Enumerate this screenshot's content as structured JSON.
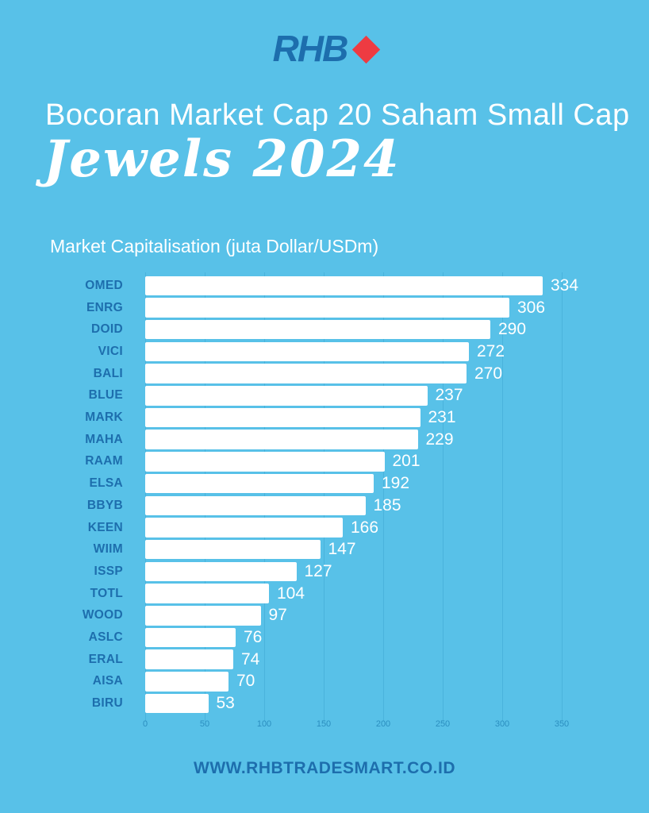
{
  "brand": {
    "logo_text": "RHB",
    "diamond_color": "#EE3B42"
  },
  "header": {
    "title": "Bocoran Market Cap 20 Saham Small Cap",
    "script_title": "Jewels 2024"
  },
  "chart_data": {
    "type": "bar",
    "orientation": "horizontal",
    "title": "Market Capitalisation (juta Dollar/USDm)",
    "categories": [
      "OMED",
      "ENRG",
      "DOID",
      "VICI",
      "BALI",
      "BLUE",
      "MARK",
      "MAHA",
      "RAAM",
      "ELSA",
      "BBYB",
      "KEEN",
      "WIIM",
      "ISSP",
      "TOTL",
      "WOOD",
      "ASLC",
      "ERAL",
      "AISA",
      "BIRU"
    ],
    "values": [
      334,
      306,
      290,
      272,
      270,
      237,
      231,
      229,
      201,
      192,
      185,
      166,
      147,
      127,
      104,
      97,
      76,
      74,
      70,
      53
    ],
    "xlabel": "",
    "ylabel": "",
    "xlim": [
      0,
      350
    ],
    "xticks": [
      0,
      50,
      100,
      150,
      200,
      250,
      300,
      350
    ],
    "grid": true,
    "bar_color": "#FFFFFF",
    "value_labels": true,
    "sort": "descending",
    "legend": false
  },
  "footer": {
    "url": "WWW.RHBTRADESMART.CO.ID"
  },
  "colors": {
    "background": "#58C1E8",
    "dark_blue": "#1D6EAD",
    "red": "#EE3B42",
    "bar": "#FFFFFF",
    "gridline": "#4AB3DC",
    "tick_label": "#2B8FC0",
    "value_label": "#FFFFFF"
  }
}
